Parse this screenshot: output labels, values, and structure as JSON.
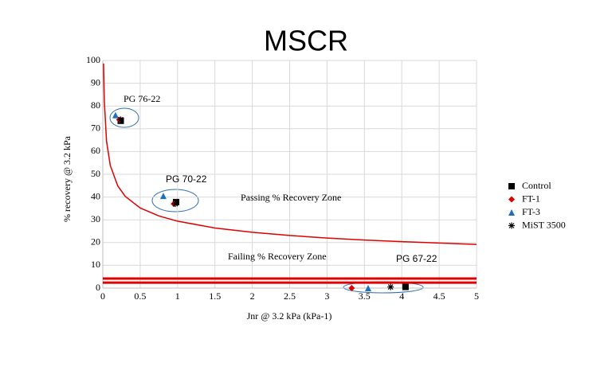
{
  "chart_data": {
    "type": "scatter",
    "title": "MSCR",
    "x_label": "Jnr @ 3.2 kPa (kPa-1)",
    "y_label": "% recovery @ 3.2 kPa",
    "xlim": [
      0,
      5
    ],
    "xticks": [
      0,
      0.5,
      1,
      1.5,
      2,
      2.5,
      3,
      3.5,
      4,
      4.5,
      5
    ],
    "ylim": [
      0,
      100
    ],
    "yticks": [
      0,
      10,
      20,
      30,
      40,
      50,
      60,
      70,
      80,
      90,
      100
    ],
    "grid": true,
    "legend": "right",
    "series": [
      {
        "name": "Control",
        "color": "#000000",
        "marker": "square",
        "x": [
          0.24,
          0.98,
          4.05
        ],
        "values": [
          73.5,
          37.8,
          0.5
        ]
      },
      {
        "name": "FT-1",
        "color": "#e00000",
        "marker": "diamond",
        "x": [
          0.22,
          0.95,
          3.33
        ],
        "values": [
          74,
          37,
          0
        ]
      },
      {
        "name": "FT-3",
        "color": "#1f6fbf",
        "marker": "triangle",
        "x": [
          0.17,
          0.81,
          3.55
        ],
        "values": [
          76,
          40.5,
          0
        ]
      },
      {
        "name": "MiST 3500",
        "color": "#000000",
        "marker": "star",
        "x": [
          0.24,
          0.97,
          3.85
        ],
        "values": [
          74,
          37,
          0.5
        ]
      }
    ],
    "curve": {
      "color": "#e00000",
      "x": [
        0.01,
        0.02,
        0.05,
        0.1,
        0.2,
        0.3,
        0.5,
        0.75,
        1,
        1.5,
        2,
        2.5,
        3,
        3.5,
        4,
        4.5,
        5
      ],
      "values": [
        98.7,
        82.3,
        64.6,
        53.9,
        44.9,
        40.3,
        35.2,
        31.7,
        29.4,
        26.4,
        24.5,
        23.1,
        22.0,
        21.1,
        20.4,
        19.8,
        19.2
      ]
    },
    "hlines": [
      4.2,
      2.4
    ],
    "annotations": [
      "PG 76-22",
      "PG 70-22",
      "Passing % Recovery Zone",
      "Failing % Recovery Zone",
      "PG 67-22"
    ]
  }
}
